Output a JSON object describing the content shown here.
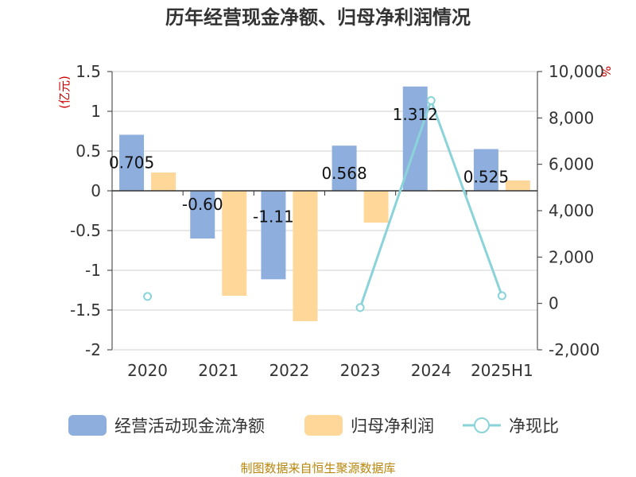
{
  "chart_data": {
    "type": "bar",
    "title": "历年经营现金净额、归母净利润情况",
    "categories": [
      "2020",
      "2021",
      "2022",
      "2023",
      "2024",
      "2025H1"
    ],
    "left_axis": {
      "unit": "(亿元)",
      "ylim": [
        -2,
        1.5
      ],
      "ticks": [
        "1.5",
        "1",
        "0.5",
        "0",
        "-0.5",
        "-1",
        "-1.5",
        "-2"
      ],
      "tick_values": [
        1.5,
        1,
        0.5,
        0,
        -0.5,
        -1,
        -1.5,
        -2
      ]
    },
    "right_axis": {
      "unit": "%",
      "ylim": [
        -2000,
        10000
      ],
      "ticks": [
        "10,000",
        "8,000",
        "6,000",
        "4,000",
        "2,000",
        "0",
        "-2,000"
      ],
      "tick_values": [
        10000,
        8000,
        6000,
        4000,
        2000,
        0,
        -2000
      ]
    },
    "series": [
      {
        "name": "经营活动现金流净额",
        "type": "bar",
        "axis": "left",
        "color": "#8eaede",
        "values": [
          0.705,
          -0.6,
          -1.113,
          0.568,
          1.312,
          0.525
        ],
        "labels": [
          "0.705",
          "-0.60",
          "-1.11",
          "0.568",
          "1.312",
          "0.525"
        ]
      },
      {
        "name": "归母净利润",
        "type": "bar",
        "axis": "left",
        "color": "#ffd899",
        "values": [
          0.23,
          -1.32,
          -1.64,
          -0.4,
          0.01,
          0.13
        ]
      },
      {
        "name": "净现比",
        "type": "line",
        "axis": "right",
        "color": "#8ad3d9",
        "values": [
          300,
          null,
          null,
          -180,
          8750,
          330
        ]
      }
    ],
    "grid": true,
    "legend_position": "bottom"
  },
  "source": "制图数据来自恒生聚源数据库"
}
